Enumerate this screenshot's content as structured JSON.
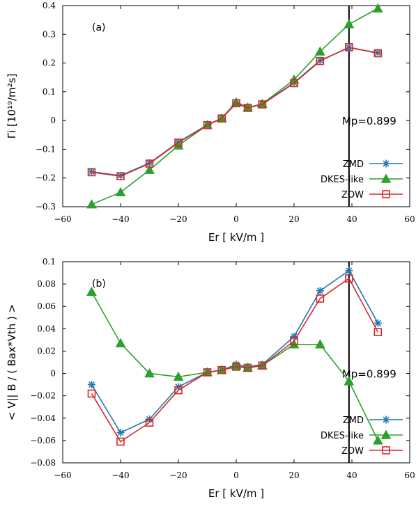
{
  "chart_data": [
    {
      "type": "line",
      "panel_label": "(a)",
      "xlabel": "Er [ kV/m ]",
      "ylabel": "Γi [10¹⁹/m²s]",
      "xlim": [
        -60,
        60
      ],
      "ylim": [
        -0.3,
        0.4
      ],
      "xticks": [
        -60,
        -40,
        -20,
        0,
        20,
        40,
        60
      ],
      "xtick_labels": [
        "−60",
        "−40",
        "−20",
        "0",
        "20",
        "40",
        "60"
      ],
      "yticks": [
        -0.3,
        -0.2,
        -0.1,
        0,
        0.1,
        0.2,
        0.3,
        0.4
      ],
      "ytick_labels": [
        "−0.3",
        "−0.2",
        "−0.1",
        "0",
        "0.1",
        "0.2",
        "0.3",
        "0.4"
      ],
      "grid": false,
      "legend_position": "bottom-right",
      "vline": {
        "x": 39,
        "label": "Mp=0.899",
        "label_y": 0
      },
      "series": [
        {
          "name": "ZMD",
          "color": "#1f77b4",
          "marker": "asterisk",
          "x": [
            -50,
            -40,
            -30,
            -20,
            -10,
            -5,
            0,
            4,
            9,
            20,
            29,
            39,
            49
          ],
          "y": [
            -0.178,
            -0.192,
            -0.148,
            -0.075,
            -0.015,
            0.008,
            0.065,
            0.045,
            0.057,
            0.132,
            0.209,
            0.253,
            0.236
          ]
        },
        {
          "name": "DKES-like",
          "color": "#2ca02c",
          "marker": "triangle",
          "x": [
            -50,
            -40,
            -30,
            -20,
            -10,
            -5,
            0,
            4,
            9,
            20,
            29,
            39,
            49
          ],
          "y": [
            -0.292,
            -0.25,
            -0.172,
            -0.087,
            -0.016,
            0.007,
            0.063,
            0.045,
            0.058,
            0.142,
            0.24,
            0.335,
            0.39
          ]
        },
        {
          "name": "ZOW",
          "color": "#d62728",
          "marker": "square",
          "x": [
            -50,
            -40,
            -30,
            -20,
            -10,
            -5,
            0,
            4,
            9,
            20,
            29,
            39,
            49
          ],
          "y": [
            -0.18,
            -0.194,
            -0.15,
            -0.077,
            -0.016,
            0.007,
            0.06,
            0.044,
            0.056,
            0.13,
            0.207,
            0.255,
            0.234
          ]
        }
      ]
    },
    {
      "type": "line",
      "panel_label": "(b)",
      "xlabel": "Er [ kV/m ]",
      "ylabel": "< V|| B / ( Bax*Vth ) >",
      "xlim": [
        -60,
        60
      ],
      "ylim": [
        -0.08,
        0.1
      ],
      "xticks": [
        -60,
        -40,
        -20,
        0,
        20,
        40,
        60
      ],
      "xtick_labels": [
        "−60",
        "−40",
        "−20",
        "0",
        "20",
        "40",
        "60"
      ],
      "yticks": [
        -0.08,
        -0.06,
        -0.04,
        -0.02,
        0,
        0.02,
        0.04,
        0.06,
        0.08,
        0.1
      ],
      "ytick_labels": [
        "−0.08",
        "−0.06",
        "−0.04",
        "−0.02",
        "0",
        "0.02",
        "0.04",
        "0.06",
        "0.08",
        "0.1"
      ],
      "grid": false,
      "legend_position": "bottom-right",
      "vline": {
        "x": 39,
        "label": "Mp=0.899",
        "label_y": 0
      },
      "series": [
        {
          "name": "ZMD",
          "color": "#1f77b4",
          "marker": "asterisk",
          "x": [
            -50,
            -40,
            -30,
            -20,
            -10,
            -5,
            0,
            4,
            9,
            20,
            29,
            39,
            49
          ],
          "y": [
            -0.01,
            -0.053,
            -0.041,
            -0.012,
            0.001,
            0.003,
            0.008,
            0.006,
            0.008,
            0.033,
            0.074,
            0.092,
            0.045
          ]
        },
        {
          "name": "DKES-like",
          "color": "#2ca02c",
          "marker": "triangle",
          "x": [
            -50,
            -40,
            -30,
            -20,
            -10,
            -5,
            0,
            4,
            9,
            20,
            29,
            39,
            49
          ],
          "y": [
            0.073,
            0.027,
            0.0,
            -0.003,
            0.001,
            0.003,
            0.007,
            0.005,
            0.007,
            0.026,
            0.026,
            -0.007,
            -0.06
          ]
        },
        {
          "name": "ZOW",
          "color": "#d62728",
          "marker": "square",
          "x": [
            -50,
            -40,
            -30,
            -20,
            -10,
            -5,
            0,
            4,
            9,
            20,
            29,
            39,
            49
          ],
          "y": [
            -0.018,
            -0.061,
            -0.044,
            -0.015,
            0.001,
            0.003,
            0.006,
            0.005,
            0.007,
            0.029,
            0.067,
            0.085,
            0.037
          ]
        }
      ]
    }
  ]
}
